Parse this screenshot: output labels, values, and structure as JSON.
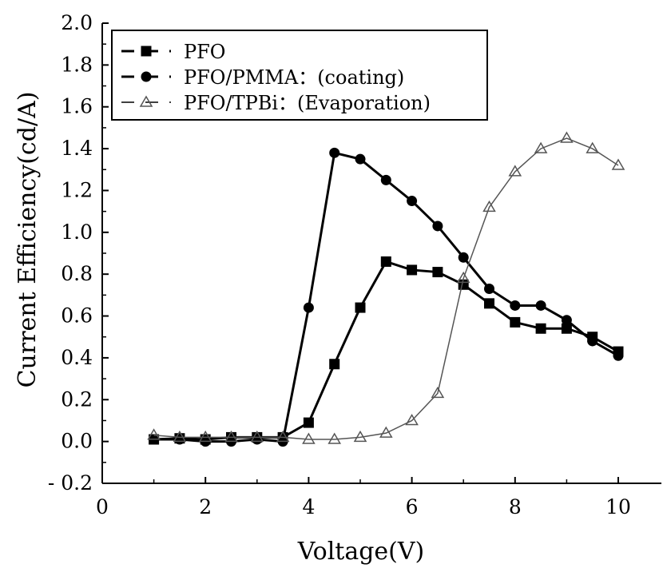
{
  "chart_data": {
    "type": "line",
    "title": "",
    "xlabel": "Voltage(V)",
    "ylabel": "Current Efficiency(cd/A)",
    "xlim": [
      0,
      11
    ],
    "ylim": [
      -0.2,
      2.0
    ],
    "xticks": [
      0,
      2,
      4,
      6,
      8,
      10
    ],
    "yticks": [
      -0.2,
      0.0,
      0.2,
      0.4,
      0.6,
      0.8,
      1.0,
      1.2,
      1.4,
      1.6,
      1.8,
      2.0
    ],
    "ytick_labels": [
      "- 0.2",
      "0.0",
      "0.2",
      "0.4",
      "0.6",
      "0.8",
      "1.0",
      "1.2",
      "1.4",
      "1.6",
      "1.8",
      "2.0"
    ],
    "grid": false,
    "legend_position": "top-left",
    "series": [
      {
        "name": "PFO",
        "marker": "square",
        "color": "#000000",
        "x": [
          1.0,
          1.5,
          2.0,
          2.5,
          3.0,
          3.5,
          4.0,
          4.5,
          5.0,
          5.5,
          6.0,
          6.5,
          7.0,
          7.5,
          8.0,
          8.5,
          9.0,
          9.5,
          10.0
        ],
        "y": [
          0.01,
          0.015,
          0.01,
          0.02,
          0.02,
          0.02,
          0.09,
          0.37,
          0.64,
          0.86,
          0.82,
          0.81,
          0.75,
          0.66,
          0.57,
          0.54,
          0.54,
          0.5,
          0.43
        ]
      },
      {
        "name": "PFO/PMMA：(coating)",
        "marker": "circle",
        "color": "#000000",
        "x": [
          1.0,
          1.5,
          2.0,
          2.5,
          3.0,
          3.5,
          4.0,
          4.5,
          5.0,
          5.5,
          6.0,
          6.5,
          7.0,
          7.5,
          8.0,
          8.5,
          9.0,
          9.5,
          10.0
        ],
        "y": [
          0.01,
          0.01,
          0.0,
          0.0,
          0.01,
          0.0,
          0.64,
          1.38,
          1.35,
          1.25,
          1.15,
          1.03,
          0.88,
          0.73,
          0.65,
          0.65,
          0.58,
          0.48,
          0.41
        ]
      },
      {
        "name": "PFO/TPBi：(Evaporation)",
        "marker": "triangle",
        "color": "#555555",
        "x": [
          1.0,
          1.5,
          2.0,
          2.5,
          3.0,
          3.5,
          4.0,
          4.5,
          5.0,
          5.5,
          6.0,
          6.5,
          7.0,
          7.5,
          8.0,
          8.5,
          9.0,
          9.5,
          10.0
        ],
        "y": [
          0.03,
          0.02,
          0.02,
          0.02,
          0.02,
          0.02,
          0.01,
          0.01,
          0.02,
          0.04,
          0.1,
          0.23,
          0.78,
          1.12,
          1.29,
          1.4,
          1.45,
          1.4,
          1.32
        ]
      }
    ]
  }
}
